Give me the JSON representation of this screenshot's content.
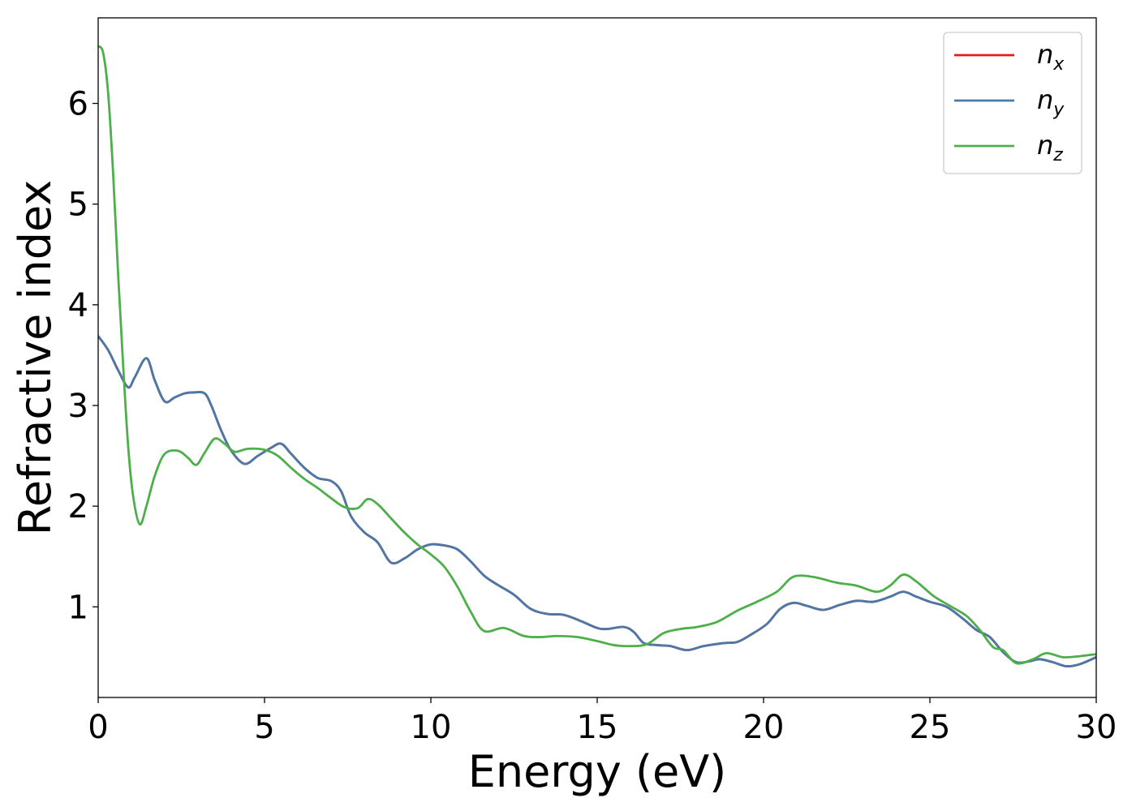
{
  "chart_data": {
    "type": "line",
    "title": "",
    "xlabel": "Energy (eV)",
    "ylabel": "Refractive index",
    "xlim": [
      0,
      30
    ],
    "ylim": [
      0.1,
      6.85
    ],
    "xticks": [
      0,
      5,
      10,
      15,
      20,
      25,
      30
    ],
    "yticks": [
      1,
      2,
      3,
      4,
      5,
      6
    ],
    "grid": false,
    "legend_position": "top-right",
    "series": [
      {
        "name": "n_x",
        "label_base": "n",
        "label_sub": "x",
        "color": "#e41a1c",
        "points": [
          [
            0,
            3.69
          ],
          [
            0.3,
            3.55
          ],
          [
            0.6,
            3.35
          ],
          [
            0.9,
            3.18
          ],
          [
            1.1,
            3.28
          ],
          [
            1.45,
            3.47
          ],
          [
            1.7,
            3.25
          ],
          [
            2.0,
            3.04
          ],
          [
            2.3,
            3.08
          ],
          [
            2.6,
            3.12
          ],
          [
            2.9,
            3.13
          ],
          [
            3.2,
            3.12
          ],
          [
            3.4,
            3.0
          ],
          [
            3.7,
            2.75
          ],
          [
            4.0,
            2.55
          ],
          [
            4.4,
            2.42
          ],
          [
            4.8,
            2.5
          ],
          [
            5.2,
            2.58
          ],
          [
            5.5,
            2.62
          ],
          [
            5.8,
            2.52
          ],
          [
            6.2,
            2.38
          ],
          [
            6.6,
            2.28
          ],
          [
            7.0,
            2.25
          ],
          [
            7.3,
            2.15
          ],
          [
            7.6,
            1.9
          ],
          [
            8.0,
            1.74
          ],
          [
            8.4,
            1.64
          ],
          [
            8.8,
            1.44
          ],
          [
            9.2,
            1.48
          ],
          [
            9.6,
            1.57
          ],
          [
            10.0,
            1.62
          ],
          [
            10.4,
            1.61
          ],
          [
            10.8,
            1.57
          ],
          [
            11.2,
            1.45
          ],
          [
            11.6,
            1.31
          ],
          [
            12.0,
            1.22
          ],
          [
            12.5,
            1.12
          ],
          [
            13.0,
            0.98
          ],
          [
            13.5,
            0.93
          ],
          [
            14.0,
            0.92
          ],
          [
            14.5,
            0.86
          ],
          [
            15.0,
            0.79
          ],
          [
            15.3,
            0.78
          ],
          [
            15.8,
            0.8
          ],
          [
            16.1,
            0.75
          ],
          [
            16.4,
            0.64
          ],
          [
            16.8,
            0.62
          ],
          [
            17.2,
            0.61
          ],
          [
            17.7,
            0.57
          ],
          [
            18.2,
            0.61
          ],
          [
            18.8,
            0.64
          ],
          [
            19.2,
            0.65
          ],
          [
            19.6,
            0.72
          ],
          [
            20.1,
            0.83
          ],
          [
            20.5,
            0.98
          ],
          [
            20.9,
            1.04
          ],
          [
            21.3,
            1.01
          ],
          [
            21.8,
            0.97
          ],
          [
            22.3,
            1.02
          ],
          [
            22.8,
            1.06
          ],
          [
            23.3,
            1.05
          ],
          [
            23.8,
            1.1
          ],
          [
            24.2,
            1.15
          ],
          [
            24.6,
            1.1
          ],
          [
            25.0,
            1.05
          ],
          [
            25.5,
            1.0
          ],
          [
            26.0,
            0.88
          ],
          [
            26.4,
            0.77
          ],
          [
            26.8,
            0.7
          ],
          [
            27.2,
            0.55
          ],
          [
            27.6,
            0.45
          ],
          [
            28.0,
            0.46
          ],
          [
            28.3,
            0.48
          ],
          [
            28.7,
            0.45
          ],
          [
            29.1,
            0.41
          ],
          [
            29.5,
            0.43
          ],
          [
            30.0,
            0.5
          ]
        ]
      },
      {
        "name": "n_y",
        "label_base": "n",
        "label_sub": "y",
        "color": "#4a78a8",
        "points": [
          [
            0,
            3.69
          ],
          [
            0.3,
            3.55
          ],
          [
            0.6,
            3.35
          ],
          [
            0.9,
            3.18
          ],
          [
            1.1,
            3.28
          ],
          [
            1.45,
            3.47
          ],
          [
            1.7,
            3.25
          ],
          [
            2.0,
            3.04
          ],
          [
            2.3,
            3.08
          ],
          [
            2.6,
            3.12
          ],
          [
            2.9,
            3.13
          ],
          [
            3.2,
            3.12
          ],
          [
            3.4,
            3.0
          ],
          [
            3.7,
            2.75
          ],
          [
            4.0,
            2.55
          ],
          [
            4.4,
            2.42
          ],
          [
            4.8,
            2.5
          ],
          [
            5.2,
            2.58
          ],
          [
            5.5,
            2.62
          ],
          [
            5.8,
            2.52
          ],
          [
            6.2,
            2.38
          ],
          [
            6.6,
            2.28
          ],
          [
            7.0,
            2.25
          ],
          [
            7.3,
            2.15
          ],
          [
            7.6,
            1.9
          ],
          [
            8.0,
            1.74
          ],
          [
            8.4,
            1.64
          ],
          [
            8.8,
            1.44
          ],
          [
            9.2,
            1.48
          ],
          [
            9.6,
            1.57
          ],
          [
            10.0,
            1.62
          ],
          [
            10.4,
            1.61
          ],
          [
            10.8,
            1.57
          ],
          [
            11.2,
            1.45
          ],
          [
            11.6,
            1.31
          ],
          [
            12.0,
            1.22
          ],
          [
            12.5,
            1.12
          ],
          [
            13.0,
            0.98
          ],
          [
            13.5,
            0.93
          ],
          [
            14.0,
            0.92
          ],
          [
            14.5,
            0.86
          ],
          [
            15.0,
            0.79
          ],
          [
            15.3,
            0.78
          ],
          [
            15.8,
            0.8
          ],
          [
            16.1,
            0.75
          ],
          [
            16.4,
            0.64
          ],
          [
            16.8,
            0.62
          ],
          [
            17.2,
            0.61
          ],
          [
            17.7,
            0.57
          ],
          [
            18.2,
            0.61
          ],
          [
            18.8,
            0.64
          ],
          [
            19.2,
            0.65
          ],
          [
            19.6,
            0.72
          ],
          [
            20.1,
            0.83
          ],
          [
            20.5,
            0.98
          ],
          [
            20.9,
            1.04
          ],
          [
            21.3,
            1.01
          ],
          [
            21.8,
            0.97
          ],
          [
            22.3,
            1.02
          ],
          [
            22.8,
            1.06
          ],
          [
            23.3,
            1.05
          ],
          [
            23.8,
            1.1
          ],
          [
            24.2,
            1.15
          ],
          [
            24.6,
            1.1
          ],
          [
            25.0,
            1.05
          ],
          [
            25.5,
            1.0
          ],
          [
            26.0,
            0.88
          ],
          [
            26.4,
            0.77
          ],
          [
            26.8,
            0.7
          ],
          [
            27.2,
            0.55
          ],
          [
            27.6,
            0.45
          ],
          [
            28.0,
            0.46
          ],
          [
            28.3,
            0.48
          ],
          [
            28.7,
            0.45
          ],
          [
            29.1,
            0.41
          ],
          [
            29.5,
            0.43
          ],
          [
            30.0,
            0.5
          ]
        ]
      },
      {
        "name": "n_z",
        "label_base": "n",
        "label_sub": "z",
        "color": "#4daf4a",
        "points": [
          [
            0,
            6.57
          ],
          [
            0.15,
            6.5
          ],
          [
            0.3,
            6.1
          ],
          [
            0.45,
            5.3
          ],
          [
            0.6,
            4.3
          ],
          [
            0.75,
            3.4
          ],
          [
            0.9,
            2.6
          ],
          [
            1.05,
            2.1
          ],
          [
            1.25,
            1.82
          ],
          [
            1.45,
            2.0
          ],
          [
            1.7,
            2.3
          ],
          [
            2.0,
            2.52
          ],
          [
            2.4,
            2.55
          ],
          [
            2.7,
            2.48
          ],
          [
            2.95,
            2.41
          ],
          [
            3.2,
            2.53
          ],
          [
            3.5,
            2.67
          ],
          [
            3.8,
            2.62
          ],
          [
            4.1,
            2.54
          ],
          [
            4.5,
            2.57
          ],
          [
            5.0,
            2.56
          ],
          [
            5.4,
            2.5
          ],
          [
            5.8,
            2.38
          ],
          [
            6.2,
            2.27
          ],
          [
            6.6,
            2.18
          ],
          [
            7.0,
            2.08
          ],
          [
            7.4,
            1.99
          ],
          [
            7.8,
            1.98
          ],
          [
            8.1,
            2.07
          ],
          [
            8.4,
            2.02
          ],
          [
            8.8,
            1.88
          ],
          [
            9.2,
            1.74
          ],
          [
            9.6,
            1.62
          ],
          [
            10.0,
            1.52
          ],
          [
            10.4,
            1.4
          ],
          [
            10.8,
            1.2
          ],
          [
            11.2,
            0.95
          ],
          [
            11.6,
            0.76
          ],
          [
            12.2,
            0.79
          ],
          [
            12.8,
            0.71
          ],
          [
            13.3,
            0.7
          ],
          [
            13.8,
            0.71
          ],
          [
            14.4,
            0.7
          ],
          [
            15.0,
            0.66
          ],
          [
            15.5,
            0.62
          ],
          [
            16.0,
            0.61
          ],
          [
            16.5,
            0.63
          ],
          [
            17.0,
            0.74
          ],
          [
            17.5,
            0.78
          ],
          [
            18.0,
            0.8
          ],
          [
            18.6,
            0.85
          ],
          [
            19.2,
            0.96
          ],
          [
            19.8,
            1.05
          ],
          [
            20.4,
            1.15
          ],
          [
            20.8,
            1.28
          ],
          [
            21.1,
            1.31
          ],
          [
            21.6,
            1.29
          ],
          [
            22.2,
            1.24
          ],
          [
            22.8,
            1.21
          ],
          [
            23.4,
            1.15
          ],
          [
            23.8,
            1.21
          ],
          [
            24.2,
            1.32
          ],
          [
            24.6,
            1.25
          ],
          [
            25.1,
            1.11
          ],
          [
            25.6,
            1.01
          ],
          [
            26.1,
            0.91
          ],
          [
            26.5,
            0.77
          ],
          [
            26.9,
            0.6
          ],
          [
            27.2,
            0.57
          ],
          [
            27.6,
            0.44
          ],
          [
            28.1,
            0.48
          ],
          [
            28.5,
            0.54
          ],
          [
            29.0,
            0.5
          ],
          [
            29.5,
            0.51
          ],
          [
            30.0,
            0.53
          ]
        ]
      }
    ]
  }
}
